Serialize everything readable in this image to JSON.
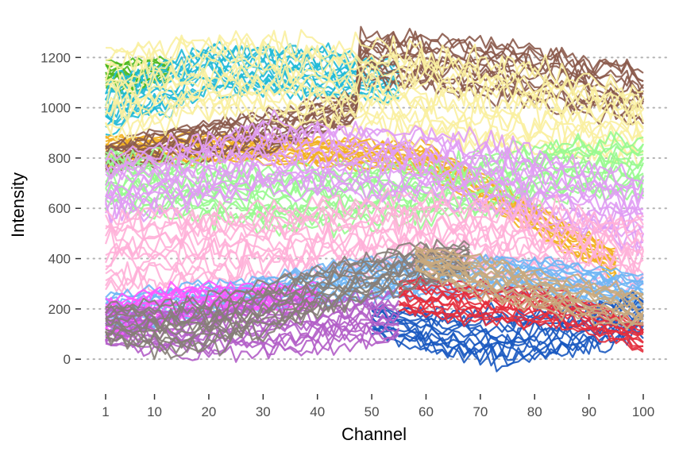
{
  "chart_data": {
    "type": "line",
    "title": "",
    "xlabel": "Channel",
    "ylabel": "Intensity",
    "xlim": [
      1,
      100
    ],
    "ylim": [
      -110,
      1340
    ],
    "x_ticks": [
      1,
      10,
      20,
      30,
      40,
      50,
      60,
      70,
      80,
      90,
      100
    ],
    "y_ticks": [
      0,
      200,
      400,
      600,
      800,
      1000,
      1200
    ],
    "grid": "horizontal dotted gridlines at y ticks",
    "legend": "none",
    "lines_per_group_drawn": 14,
    "note_groups": "Each group is a bundle of many overlapping spectra; values give the approximate band center and half-width at key channels.",
    "series": [
      {
        "color": "#4CB81E",
        "x": [
          1,
          5,
          10,
          13
        ],
        "center": [
          1130,
          1120,
          1140,
          1150
        ],
        "spread": [
          60,
          70,
          60,
          40
        ]
      },
      {
        "color": "#1FB9D6",
        "x": [
          1,
          20,
          40,
          55
        ],
        "center": [
          1000,
          1150,
          1140,
          1100
        ],
        "spread": [
          110,
          110,
          100,
          80
        ]
      },
      {
        "color": "#F2B01E",
        "x": [
          1,
          30,
          60,
          95
        ],
        "center": [
          830,
          840,
          800,
          380
        ],
        "spread": [
          60,
          60,
          60,
          60
        ]
      },
      {
        "color": "#8B5A4B",
        "x": [
          1,
          15,
          30,
          47,
          48,
          75,
          100
        ],
        "center": [
          800,
          860,
          900,
          1000,
          1200,
          1150,
          1050
        ],
        "spread": [
          60,
          80,
          90,
          60,
          110,
          120,
          120
        ]
      },
      {
        "color": "#FAF0A0",
        "x": [
          1,
          25,
          50,
          75,
          100
        ],
        "center": [
          1060,
          1130,
          1080,
          1000,
          930
        ],
        "spread": [
          180,
          160,
          190,
          190,
          150
        ]
      },
      {
        "color": "#98F98F",
        "x": [
          1,
          30,
          60,
          85,
          100
        ],
        "center": [
          720,
          640,
          660,
          760,
          770
        ],
        "spread": [
          120,
          130,
          120,
          120,
          120
        ]
      },
      {
        "color": "#E09CF4",
        "x": [
          1,
          30,
          60,
          100
        ],
        "center": [
          680,
          800,
          780,
          580
        ],
        "spread": [
          140,
          150,
          150,
          150
        ]
      },
      {
        "color": "#FFB0D8",
        "x": [
          1,
          30,
          60,
          100
        ],
        "center": [
          430,
          460,
          500,
          420
        ],
        "spread": [
          160,
          160,
          160,
          150
        ]
      },
      {
        "color": "#6FB6F5",
        "x": [
          1,
          20,
          50,
          80,
          100
        ],
        "center": [
          180,
          230,
          320,
          330,
          270
        ],
        "spread": [
          90,
          70,
          90,
          80,
          70
        ]
      },
      {
        "color": "#FF55FF",
        "x": [
          1,
          15,
          30,
          40
        ],
        "center": [
          160,
          220,
          240,
          250
        ],
        "spread": [
          90,
          80,
          60,
          50
        ]
      },
      {
        "color": "#1858C0",
        "x": [
          50,
          60,
          75,
          90,
          100
        ],
        "center": [
          160,
          110,
          80,
          130,
          180
        ],
        "spread": [
          60,
          90,
          110,
          100,
          80
        ]
      },
      {
        "color": "#E42E3C",
        "x": [
          55,
          70,
          85,
          100
        ],
        "center": [
          250,
          220,
          200,
          90
        ],
        "spread": [
          80,
          80,
          80,
          60
        ]
      },
      {
        "color": "#B35EC8",
        "x": [
          1,
          15,
          30,
          45,
          55
        ],
        "center": [
          130,
          110,
          130,
          150,
          170
        ],
        "spread": [
          80,
          100,
          110,
          110,
          100
        ]
      },
      {
        "color": "#867E78",
        "x": [
          1,
          15,
          30,
          45,
          58,
          68
        ],
        "center": [
          150,
          120,
          200,
          300,
          370,
          400
        ],
        "spread": [
          80,
          110,
          110,
          100,
          90,
          70
        ]
      },
      {
        "color": "#C9A87C",
        "x": [
          58,
          70,
          85,
          100
        ],
        "center": [
          400,
          330,
          250,
          190
        ],
        "spread": [
          60,
          80,
          80,
          80
        ]
      }
    ]
  }
}
